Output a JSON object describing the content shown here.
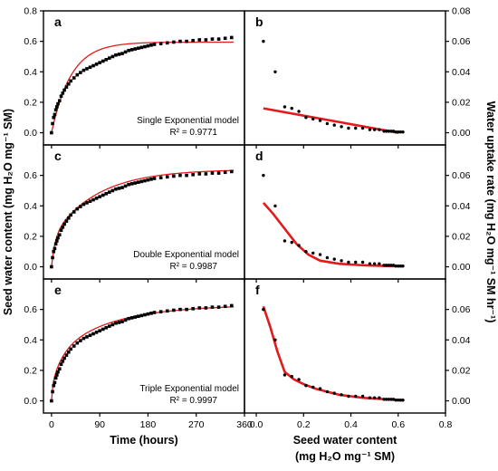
{
  "chart_data": {
    "type": "scatter",
    "figure_labels": {
      "left_ylabel": "Seed water content (mg H₂O mg⁻¹ SM)",
      "right_ylabel": "Water uptake rate (mg H₂O mg⁻¹ SM hr⁻¹)",
      "left_xlabel": "Time (hours)",
      "right_xlabel_line1": "Seed water content",
      "right_xlabel_line2": "(mg H₂O mg⁻¹ SM)"
    },
    "axes": {
      "time_xlim": [
        -15,
        360
      ],
      "time_xticks": [
        "0",
        "90",
        "180",
        "270",
        "360"
      ],
      "time_xtick_values": [
        0,
        90,
        180,
        270,
        360
      ],
      "content_ylim": [
        -0.08,
        0.8
      ],
      "content_yticks_top": [
        "0.0",
        "0.2",
        "0.4",
        "0.6",
        "0.8"
      ],
      "content_ytick_values_top": [
        0.0,
        0.2,
        0.4,
        0.6,
        0.8
      ],
      "content_yticks": [
        "0.0",
        "0.2",
        "0.4",
        "0.6"
      ],
      "content_ytick_values": [
        0.0,
        0.2,
        0.4,
        0.6
      ],
      "wc_xlim": [
        -0.05,
        0.8
      ],
      "wc_xticks": [
        "0.0",
        "0.2",
        "0.4",
        "0.6",
        "0.8"
      ],
      "wc_xtick_values": [
        0.0,
        0.2,
        0.4,
        0.6,
        0.8
      ],
      "rate_ylim": [
        -0.008,
        0.08
      ],
      "rate_yticks_top": [
        "0.00",
        "0.02",
        "0.04",
        "0.06",
        "0.08"
      ],
      "rate_ytick_values_top": [
        0.0,
        0.02,
        0.04,
        0.06,
        0.08
      ],
      "rate_yticks": [
        "0.00",
        "0.02",
        "0.04",
        "0.06"
      ],
      "rate_ytick_values": [
        0.0,
        0.02,
        0.04,
        0.06
      ]
    },
    "series_style": {
      "points_color": "#000000",
      "fit_color": "#e31a1c"
    },
    "uptake_points": {
      "time": [
        0,
        2,
        4,
        6,
        8,
        10,
        12,
        15,
        18,
        21,
        24,
        28,
        32,
        36,
        42,
        48,
        54,
        60,
        66,
        72,
        78,
        84,
        90,
        96,
        102,
        108,
        114,
        120,
        126,
        132,
        138,
        144,
        150,
        156,
        162,
        168,
        174,
        180,
        186,
        192,
        204,
        216,
        228,
        240,
        252,
        264,
        276,
        288,
        300,
        312,
        324,
        336
      ],
      "content": [
        0.0,
        0.06,
        0.1,
        0.12,
        0.15,
        0.17,
        0.19,
        0.21,
        0.24,
        0.26,
        0.28,
        0.3,
        0.32,
        0.34,
        0.36,
        0.38,
        0.395,
        0.41,
        0.42,
        0.43,
        0.44,
        0.45,
        0.46,
        0.47,
        0.48,
        0.49,
        0.5,
        0.51,
        0.515,
        0.52,
        0.53,
        0.54,
        0.545,
        0.55,
        0.555,
        0.56,
        0.565,
        0.57,
        0.575,
        0.58,
        0.585,
        0.59,
        0.595,
        0.6,
        0.6,
        0.605,
        0.61,
        0.61,
        0.615,
        0.615,
        0.62,
        0.625
      ]
    },
    "rate_points": {
      "content": [
        0.03,
        0.08,
        0.12,
        0.15,
        0.18,
        0.21,
        0.24,
        0.27,
        0.3,
        0.33,
        0.36,
        0.39,
        0.42,
        0.45,
        0.48,
        0.5,
        0.52,
        0.54,
        0.55,
        0.56,
        0.57,
        0.58,
        0.59,
        0.6,
        0.61,
        0.62
      ],
      "rate": [
        0.06,
        0.04,
        0.017,
        0.016,
        0.014,
        0.01,
        0.009,
        0.008,
        0.006,
        0.005,
        0.004,
        0.003,
        0.003,
        0.003,
        0.002,
        0.002,
        0.002,
        0.001,
        0.001,
        0.001,
        0.001,
        0.001,
        0.0005,
        0.0005,
        0.0005,
        0.0005
      ]
    },
    "panels": [
      {
        "id": "a",
        "letter": "a",
        "kind": "uptake",
        "model_label": "Single Exponential model",
        "r2_label": "R² = 0.9771",
        "fit": {
          "form": "single",
          "a": 0.595,
          "k1": 0.0275
        }
      },
      {
        "id": "b",
        "letter": "b",
        "kind": "rate",
        "fit": {
          "x": [
            0.03,
            0.6
          ],
          "y": [
            0.016,
            0.0
          ]
        }
      },
      {
        "id": "c",
        "letter": "c",
        "kind": "uptake",
        "model_label": "Double Exponential model",
        "r2_label": "R² = 0.9987",
        "fit": {
          "form": "double",
          "a": 0.19,
          "k1": 0.15,
          "b": 0.45,
          "k2": 0.012
        }
      },
      {
        "id": "d",
        "letter": "d",
        "kind": "rate",
        "fit": {
          "x": [
            0.03,
            0.07,
            0.12,
            0.17,
            0.22,
            0.27,
            0.35,
            0.45,
            0.55,
            0.62
          ],
          "y": [
            0.042,
            0.035,
            0.025,
            0.015,
            0.008,
            0.004,
            0.002,
            0.001,
            0.0005,
            0.0003
          ]
        }
      },
      {
        "id": "e",
        "letter": "e",
        "kind": "uptake",
        "model_label": "Triple Exponential model",
        "r2_label": "R² = 0.9997",
        "fit": {
          "form": "triple",
          "a": 0.1,
          "k1": 0.4,
          "b": 0.2,
          "k2": 0.05,
          "c": 0.33,
          "k3": 0.0095
        }
      },
      {
        "id": "f",
        "letter": "f",
        "kind": "rate",
        "fit": {
          "x": [
            0.03,
            0.06,
            0.09,
            0.12,
            0.16,
            0.2,
            0.25,
            0.3,
            0.35,
            0.4,
            0.45,
            0.5,
            0.55,
            0.6,
            0.62
          ],
          "y": [
            0.062,
            0.048,
            0.032,
            0.019,
            0.014,
            0.011,
            0.008,
            0.006,
            0.004,
            0.003,
            0.002,
            0.0015,
            0.001,
            0.0005,
            0.0003
          ]
        }
      }
    ]
  }
}
